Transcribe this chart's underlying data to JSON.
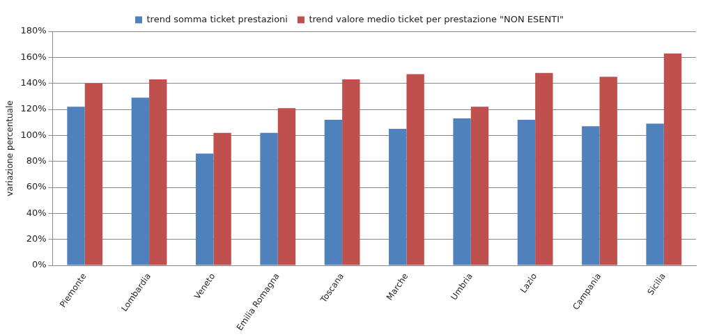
{
  "chart_data": {
    "type": "bar",
    "ylabel": "variazione percentuale",
    "categories": [
      "Piemonte",
      "Lombardia",
      "Veneto",
      "Emilia Romagna",
      "Toscana",
      "Marche",
      "Umbria",
      "Lazio",
      "Campania",
      "Sicilia"
    ],
    "series": [
      {
        "name": "trend somma ticket prestazioni",
        "color": "#4f81bd",
        "values": [
          122,
          129,
          86,
          102,
          112,
          105,
          113,
          112,
          107,
          109
        ]
      },
      {
        "name": "trend valore medio ticket per prestazione \"NON ESENTI\"",
        "color": "#c0504d",
        "values": [
          140,
          143,
          102,
          121,
          143,
          147,
          122,
          148,
          145,
          163
        ]
      }
    ],
    "ylim": [
      0,
      180
    ],
    "yticks": [
      {
        "value": 0,
        "label": "0%"
      },
      {
        "value": 20,
        "label": "20%"
      },
      {
        "value": 40,
        "label": "40%"
      },
      {
        "value": 60,
        "label": "60%"
      },
      {
        "value": 80,
        "label": "80%"
      },
      {
        "value": 100,
        "label": "100%"
      },
      {
        "value": 120,
        "label": "120%"
      },
      {
        "value": 140,
        "label": "140%"
      },
      {
        "value": 160,
        "label": "160%"
      },
      {
        "value": 180,
        "label": "180%"
      }
    ],
    "grid": "y",
    "legend": "top"
  }
}
